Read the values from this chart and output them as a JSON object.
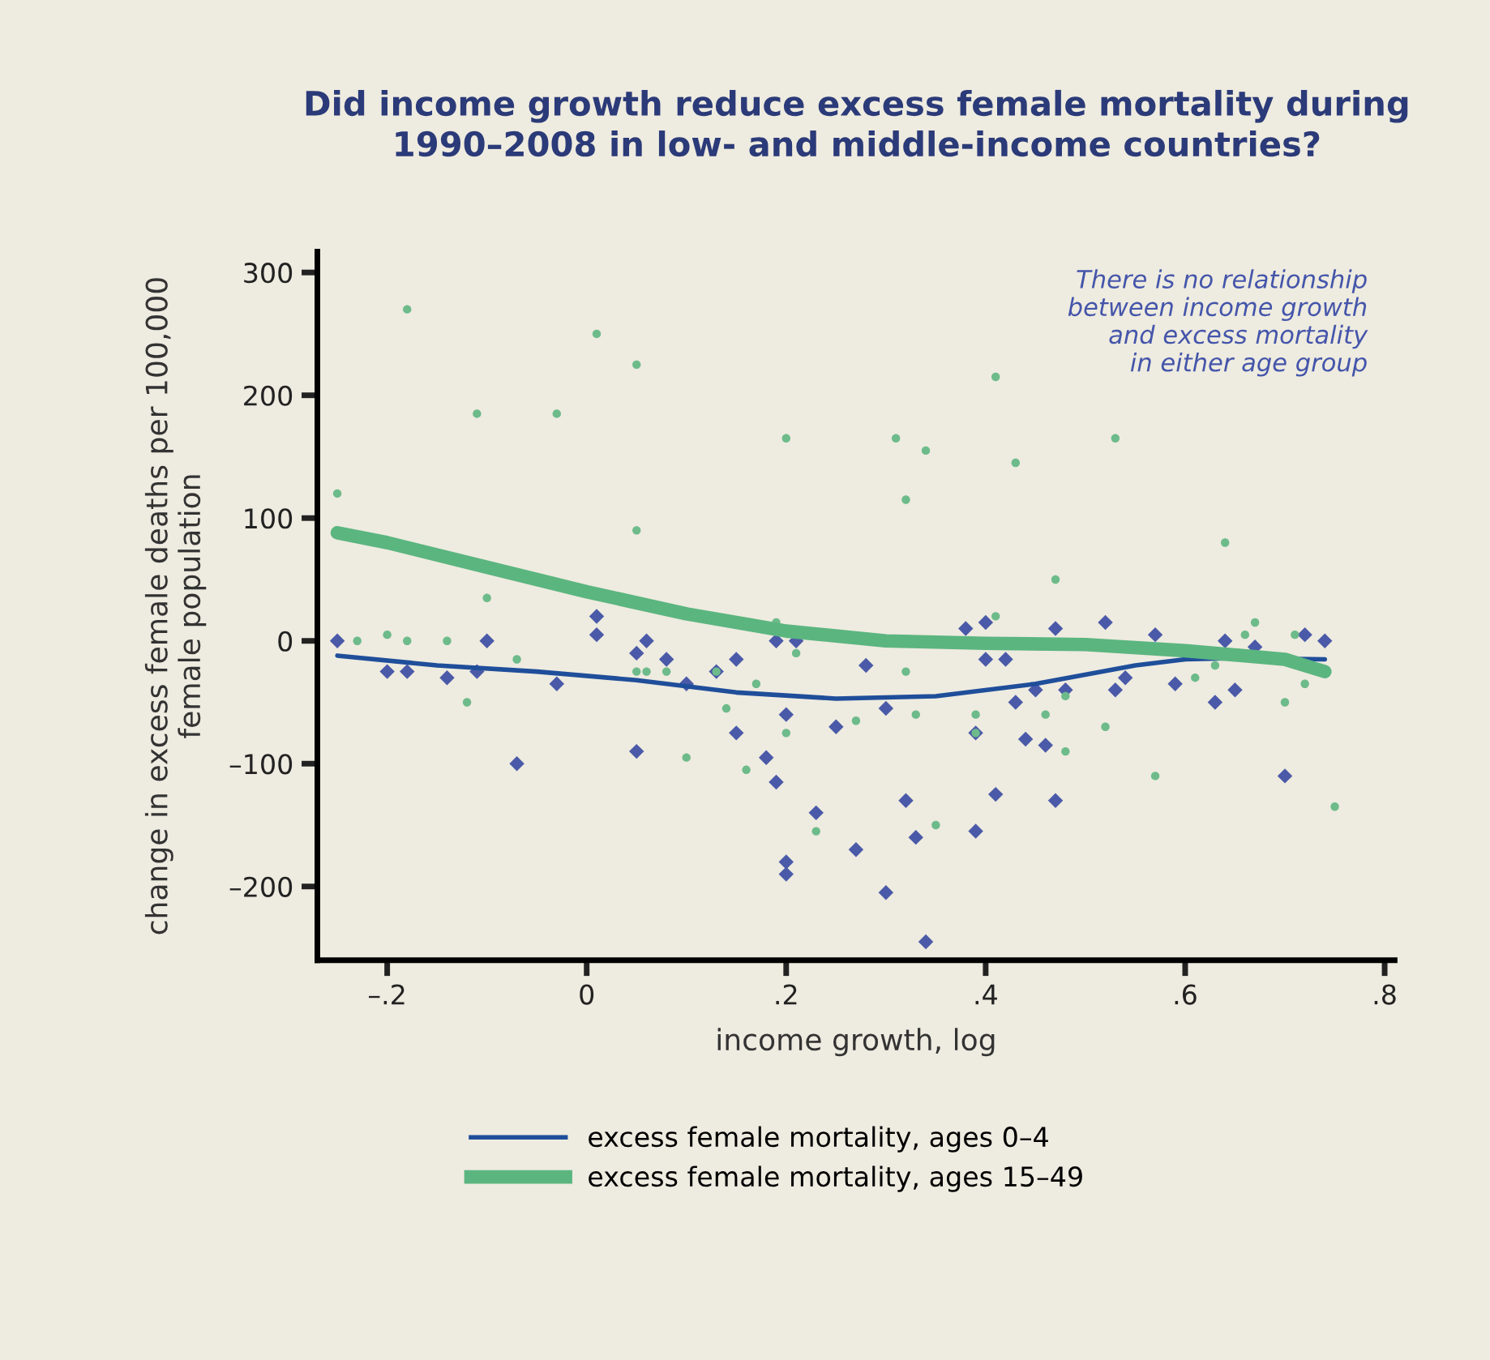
{
  "chart_data": {
    "type": "scatter",
    "title": "Did income growth reduce excess female mortality during\n1990–2008 in low- and middle-income countries?",
    "xlabel": "income growth, log",
    "ylabel": "change in excess female deaths per 100,000\nfemale population",
    "annotations": [
      "There is no relationship\nbetween income growth\nand excess mortality\nin either age group"
    ],
    "xlim": [
      -0.27,
      0.81
    ],
    "ylim": [
      -260,
      317
    ],
    "xticks": [
      {
        "value": -0.2,
        "label": "–.2"
      },
      {
        "value": 0,
        "label": "0"
      },
      {
        "value": 0.2,
        "label": ".2"
      },
      {
        "value": 0.4,
        "label": ".4"
      },
      {
        "value": 0.6,
        "label": ".6"
      },
      {
        "value": 0.8,
        "label": ".8"
      }
    ],
    "yticks": [
      {
        "value": -200,
        "label": "–200"
      },
      {
        "value": -100,
        "label": "–100"
      },
      {
        "value": 0,
        "label": "0"
      },
      {
        "value": 100,
        "label": "100"
      },
      {
        "value": 200,
        "label": "200"
      },
      {
        "value": 300,
        "label": "300"
      }
    ],
    "grid": false,
    "legend": "bottom",
    "series": [
      {
        "marker": "diamond",
        "color": "#4a5aa8",
        "x": [
          -0.25,
          -0.2,
          -0.18,
          -0.14,
          -0.11,
          -0.1,
          -0.07,
          -0.03,
          0.01,
          0.01,
          0.05,
          0.06,
          0.05,
          0.08,
          0.1,
          0.13,
          0.15,
          0.15,
          0.18,
          0.19,
          0.2,
          0.19,
          0.23,
          0.2,
          0.2,
          0.25,
          0.27,
          0.21,
          0.3,
          0.32,
          0.33,
          0.34,
          0.39,
          0.41,
          0.47,
          0.44,
          0.46,
          0.43,
          0.45,
          0.48,
          0.53,
          0.54,
          0.3,
          0.28,
          0.38,
          0.4,
          0.47,
          0.52,
          0.4,
          0.42,
          0.57,
          0.59,
          0.63,
          0.65,
          0.7,
          0.64,
          0.67,
          0.72,
          0.74,
          0.39
        ],
        "values": [
          0,
          -25,
          -25,
          -30,
          -25,
          0,
          -100,
          -35,
          20,
          5,
          -10,
          0,
          -90,
          -15,
          -35,
          -25,
          -15,
          -75,
          -95,
          0,
          -60,
          -115,
          -140,
          -180,
          -190,
          -70,
          -170,
          0,
          -205,
          -130,
          -160,
          -245,
          -155,
          -125,
          -130,
          -80,
          -85,
          -50,
          -40,
          -40,
          -40,
          -30,
          -55,
          -20,
          10,
          15,
          10,
          15,
          -15,
          -15,
          5,
          -35,
          -50,
          -40,
          -110,
          0,
          -5,
          5,
          0,
          -75
        ]
      },
      {
        "marker": "circle",
        "color": "#6dbb8a",
        "x": [
          -0.18,
          0.01,
          0.05,
          -0.11,
          -0.03,
          0.2,
          -0.25,
          0.05,
          -0.1,
          0.41,
          0.31,
          0.34,
          0.43,
          0.32,
          0.53,
          0.64,
          0.47,
          -0.23,
          -0.2,
          -0.18,
          -0.14,
          -0.12,
          -0.07,
          0.05,
          0.06,
          0.08,
          0.13,
          0.14,
          0.1,
          0.16,
          0.17,
          0.2,
          0.23,
          0.21,
          0.19,
          0.27,
          0.33,
          0.35,
          0.39,
          0.39,
          0.32,
          0.46,
          0.48,
          0.52,
          0.57,
          0.61,
          0.67,
          0.7,
          0.72,
          0.75,
          0.41,
          0.48,
          0.66,
          0.71,
          0.63
        ],
        "values": [
          270,
          250,
          225,
          185,
          185,
          165,
          120,
          90,
          35,
          215,
          165,
          155,
          145,
          115,
          165,
          80,
          50,
          0,
          5,
          0,
          0,
          -50,
          -15,
          -25,
          -25,
          -25,
          -25,
          -55,
          -95,
          -105,
          -35,
          -75,
          -155,
          -10,
          15,
          -65,
          -60,
          -150,
          -60,
          -75,
          -25,
          -60,
          -90,
          -70,
          -110,
          -30,
          15,
          -50,
          -35,
          -135,
          20,
          -45,
          5,
          5,
          -20
        ]
      },
      {
        "type": "line",
        "name": "excess female mortality, ages 0–4",
        "color": "#1f4e9a",
        "x": [
          -0.25,
          -0.15,
          -0.05,
          0.05,
          0.15,
          0.25,
          0.35,
          0.45,
          0.55,
          0.6,
          0.65,
          0.74
        ],
        "values": [
          -12,
          -20,
          -25,
          -32,
          -42,
          -47,
          -45,
          -35,
          -20,
          -15,
          -14,
          -15
        ]
      },
      {
        "type": "line",
        "name": "excess female mortality, ages 15–49",
        "color": "#5bb57f",
        "x": [
          -0.25,
          -0.2,
          -0.1,
          0,
          0.1,
          0.2,
          0.3,
          0.4,
          0.5,
          0.6,
          0.7,
          0.74
        ],
        "values": [
          88,
          80,
          60,
          40,
          22,
          8,
          0,
          -2,
          -3,
          -8,
          -15,
          -25
        ]
      }
    ]
  }
}
